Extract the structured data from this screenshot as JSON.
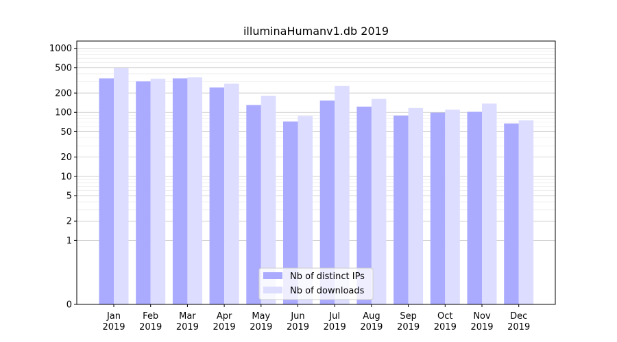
{
  "chart_data": {
    "type": "bar",
    "title": "illuminaHumanv1.db 2019",
    "xlabel": "",
    "ylabel": "",
    "y_scale": "symlog",
    "ylim": [
      0,
      1300
    ],
    "y_ticks": [
      0,
      1,
      2,
      5,
      10,
      20,
      50,
      100,
      200,
      500,
      1000
    ],
    "grid": true,
    "legend_position": "bottom-center",
    "categories": [
      {
        "month": "Jan",
        "year": "2019"
      },
      {
        "month": "Feb",
        "year": "2019"
      },
      {
        "month": "Mar",
        "year": "2019"
      },
      {
        "month": "Apr",
        "year": "2019"
      },
      {
        "month": "May",
        "year": "2019"
      },
      {
        "month": "Jun",
        "year": "2019"
      },
      {
        "month": "Jul",
        "year": "2019"
      },
      {
        "month": "Aug",
        "year": "2019"
      },
      {
        "month": "Sep",
        "year": "2019"
      },
      {
        "month": "Oct",
        "year": "2019"
      },
      {
        "month": "Nov",
        "year": "2019"
      },
      {
        "month": "Dec",
        "year": "2019"
      }
    ],
    "series": [
      {
        "name": "Nb of distinct IPs",
        "color": "#aaaaff",
        "values": [
          340,
          305,
          340,
          245,
          130,
          72,
          153,
          123,
          89,
          99,
          102,
          67
        ]
      },
      {
        "name": "Nb of downloads",
        "color": "#ddddff",
        "values": [
          495,
          335,
          352,
          280,
          182,
          88,
          258,
          162,
          117,
          110,
          137,
          75
        ]
      }
    ]
  }
}
